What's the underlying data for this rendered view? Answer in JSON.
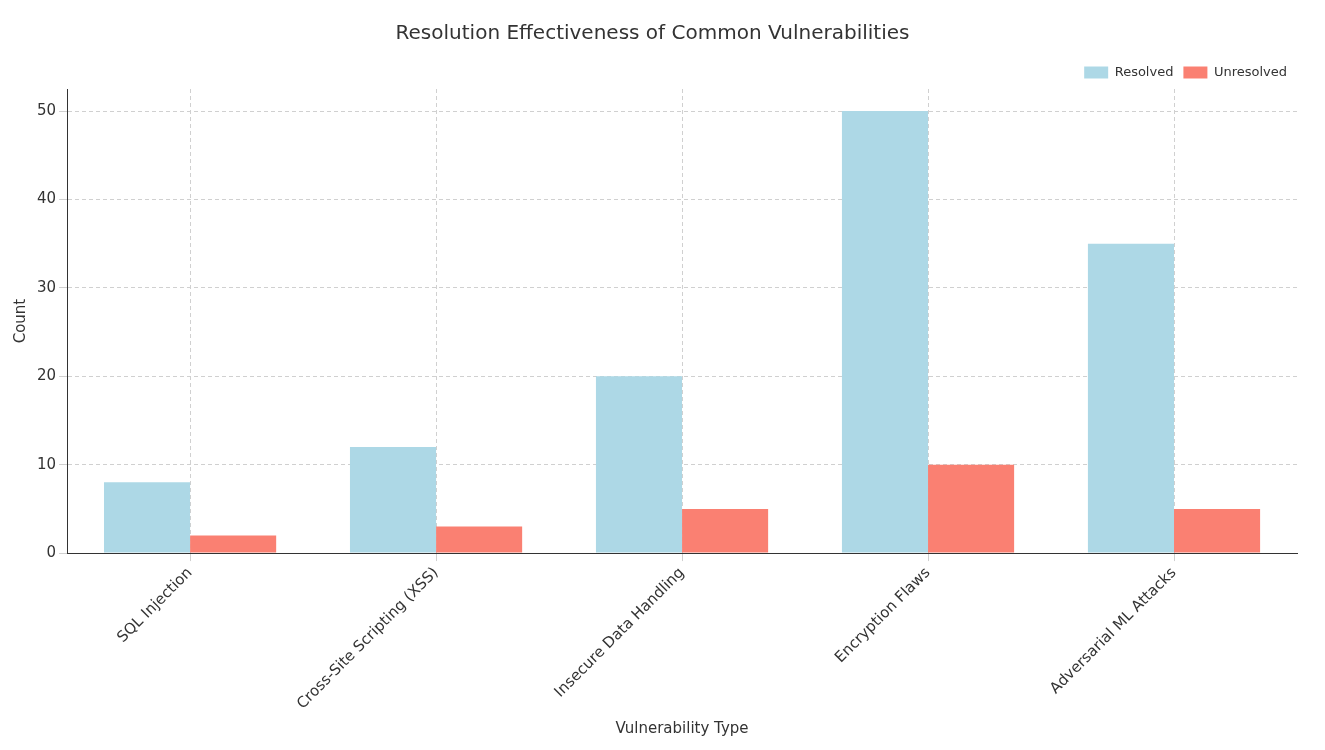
{
  "chart_data": {
    "type": "bar",
    "title": "Resolution Effectiveness of Common Vulnerabilities",
    "xlabel": "Vulnerability Type",
    "ylabel": "Count",
    "categories": [
      "SQL Injection",
      "Cross-Site Scripting (XSS)",
      "Insecure Data Handling",
      "Encryption Flaws",
      "Adversarial ML Attacks"
    ],
    "series": [
      {
        "name": "Resolved",
        "color": "#add8e6",
        "values": [
          8,
          12,
          20,
          50,
          35
        ]
      },
      {
        "name": "Unresolved",
        "color": "#fa8072",
        "values": [
          2,
          3,
          5,
          10,
          5
        ]
      }
    ],
    "ylim": [
      0,
      52.5
    ],
    "yticks": [
      0,
      10,
      20,
      30,
      40,
      50
    ],
    "grid": true,
    "legend": "top right"
  }
}
